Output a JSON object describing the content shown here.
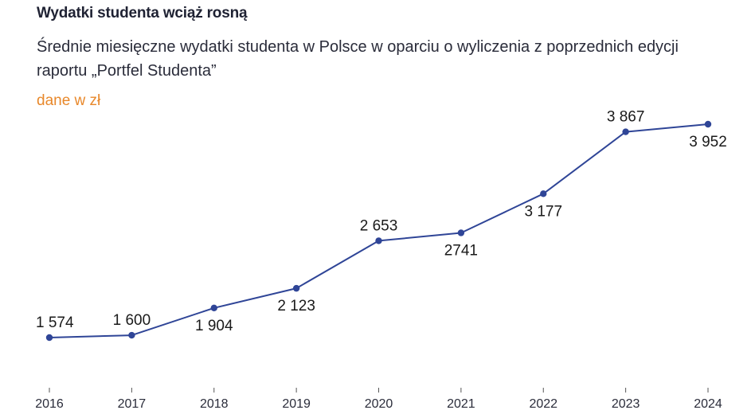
{
  "header": {
    "title": "Wydatki studenta wciąż rosną",
    "subtitle": "Średnie miesięczne wydatki studenta w Polsce w oparciu o wyliczenia z poprzednich edycji raportu „Portfel Studenta”",
    "unit_label": "dane w zł"
  },
  "colors": {
    "line": "#2f4597",
    "accent": "#e8882b",
    "text": "#1f2233"
  },
  "chart_data": {
    "type": "line",
    "title": "Wydatki studenta wciąż rosną",
    "subtitle": "Średnie miesięczne wydatki studenta w Polsce w oparciu o wyliczenia z poprzednich edycji raportu „Portfel Studenta”",
    "xlabel": "",
    "ylabel": "",
    "unit": "dane w zł",
    "categories": [
      "2016",
      "2017",
      "2018",
      "2019",
      "2020",
      "2021",
      "2022",
      "2023",
      "2024"
    ],
    "values": [
      1574,
      1600,
      1904,
      2123,
      2653,
      2741,
      3177,
      3867,
      3952
    ],
    "data_labels": [
      "1 574",
      "1 600",
      "1 904",
      "2 123",
      "2 653",
      "2741",
      "3 177",
      "3 867",
      "3 952"
    ],
    "label_positions": [
      "above",
      "above",
      "below",
      "below",
      "above",
      "below",
      "below",
      "above",
      "below"
    ],
    "grid": false,
    "legend": "none"
  }
}
